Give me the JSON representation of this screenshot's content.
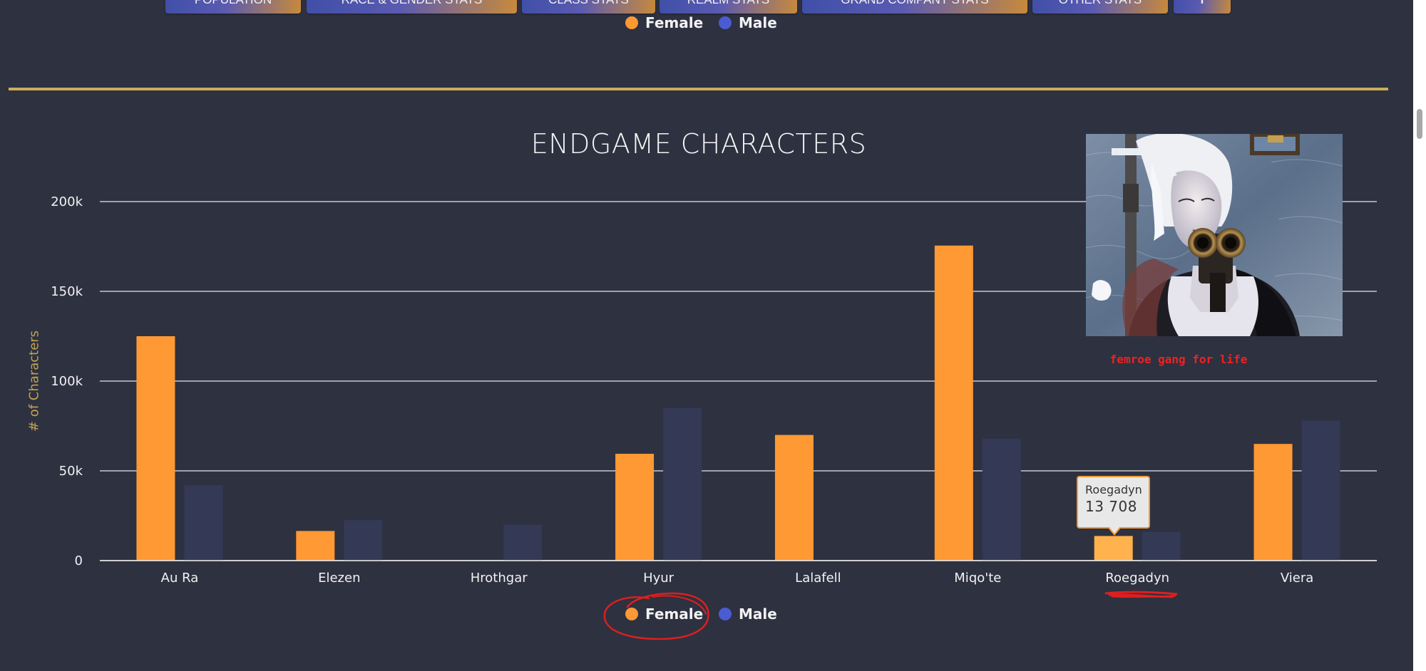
{
  "nav": {
    "buttons": [
      {
        "label": "POPULATION"
      },
      {
        "label": "RACE & GENDER STATS"
      },
      {
        "label": "CLASS STATS"
      },
      {
        "label": "REALM STATS"
      },
      {
        "label": "GRAND COMPANY STATS"
      },
      {
        "label": "OTHER STATS"
      },
      {
        "label": "i"
      }
    ]
  },
  "top_legend": {
    "items": [
      {
        "label": "Female",
        "color": "#ff9933"
      },
      {
        "label": "Male",
        "color": "#4b5bd1"
      }
    ]
  },
  "chart_data": {
    "type": "bar",
    "title": "ENDGAME CHARACTERS",
    "xlabel": "",
    "ylabel": "# of Characters",
    "categories": [
      "Au Ra",
      "Elezen",
      "Hrothgar",
      "Hyur",
      "Lalafell",
      "Miqo'te",
      "Roegadyn",
      "Viera"
    ],
    "series": [
      {
        "name": "Female",
        "color": "#ff9933",
        "values": [
          125000,
          16500,
          0,
          59500,
          70000,
          175500,
          13708,
          65000
        ]
      },
      {
        "name": "Male",
        "color": "#343a55",
        "values": [
          42000,
          22500,
          20000,
          85000,
          0,
          68000,
          16000,
          78000
        ]
      }
    ],
    "ylim": [
      0,
      200000
    ],
    "yticks": [
      {
        "value": 0,
        "label": "0"
      },
      {
        "value": 50000,
        "label": "50k"
      },
      {
        "value": 100000,
        "label": "100k"
      },
      {
        "value": 150000,
        "label": "150k"
      },
      {
        "value": 200000,
        "label": "200k"
      }
    ],
    "grid": true,
    "legend_position": "bottom-center",
    "highlight": {
      "category": "Roegadyn",
      "series": "Female"
    }
  },
  "tooltip": {
    "category": "Roegadyn",
    "value": "13 708"
  },
  "bottom_legend": {
    "items": [
      {
        "label": "Female",
        "color": "#ff9933"
      },
      {
        "label": "Male",
        "color": "#4b5bd1"
      }
    ]
  },
  "meme": {
    "caption": "femroe gang for life"
  },
  "colors": {
    "background": "#2e3140",
    "divider": "#c9ad5b",
    "axis_label": "#c2a352",
    "annotation_ink": "#dd1f1f"
  }
}
